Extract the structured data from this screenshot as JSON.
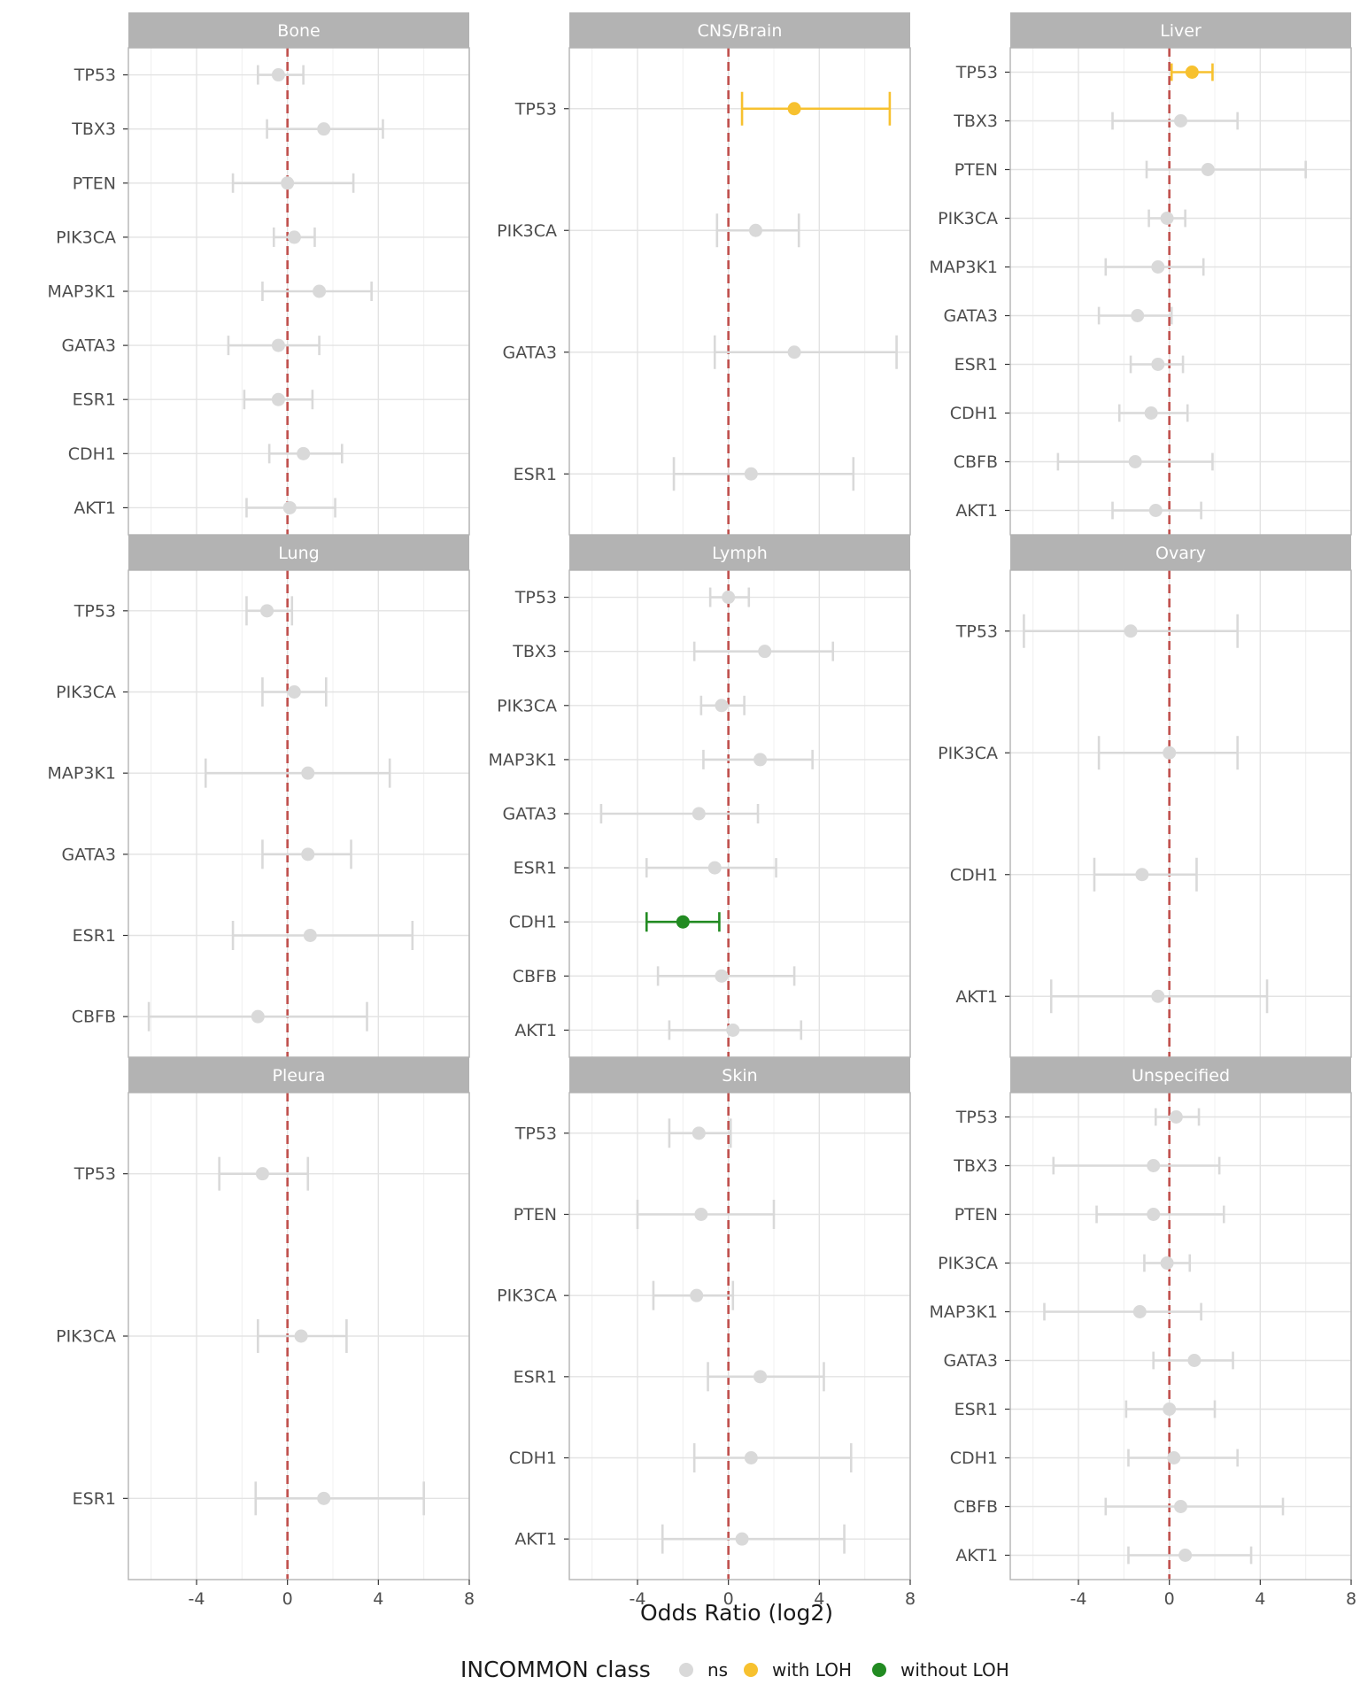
{
  "chart_data": {
    "type": "scatter",
    "subtype": "forest-plot (point + error bar), faceted",
    "xlabel": "Odds Ratio (log2)",
    "ylabel": "",
    "xlim": [
      -7,
      8
    ],
    "x_ticks": [
      -4,
      0,
      4,
      8
    ],
    "x_tick_labels": [
      "-4",
      "0",
      "4",
      "8"
    ],
    "reference_line": {
      "x": 0,
      "style": "dashed",
      "color": "#c0504d"
    },
    "grid": true,
    "legend": {
      "title": "INCOMMON class",
      "position": "bottom",
      "items": [
        {
          "label": "ns",
          "color": "#d9d9d9"
        },
        {
          "label": "with LOH",
          "color": "#f7c12f"
        },
        {
          "label": "without LOH",
          "color": "#228b22"
        }
      ]
    },
    "panels": [
      {
        "title": "Bone",
        "genes": [
          {
            "gene": "TP53",
            "est": -0.4,
            "lo": -1.3,
            "hi": 0.7,
            "cls": "ns"
          },
          {
            "gene": "TBX3",
            "est": 1.6,
            "lo": -0.9,
            "hi": 4.2,
            "cls": "ns"
          },
          {
            "gene": "PTEN",
            "est": 0.0,
            "lo": -2.4,
            "hi": 2.9,
            "cls": "ns"
          },
          {
            "gene": "PIK3CA",
            "est": 0.3,
            "lo": -0.6,
            "hi": 1.2,
            "cls": "ns"
          },
          {
            "gene": "MAP3K1",
            "est": 1.4,
            "lo": -1.1,
            "hi": 3.7,
            "cls": "ns"
          },
          {
            "gene": "GATA3",
            "est": -0.4,
            "lo": -2.6,
            "hi": 1.4,
            "cls": "ns"
          },
          {
            "gene": "ESR1",
            "est": -0.4,
            "lo": -1.9,
            "hi": 1.1,
            "cls": "ns"
          },
          {
            "gene": "CDH1",
            "est": 0.7,
            "lo": -0.8,
            "hi": 2.4,
            "cls": "ns"
          },
          {
            "gene": "AKT1",
            "est": 0.1,
            "lo": -1.8,
            "hi": 2.1,
            "cls": "ns"
          }
        ]
      },
      {
        "title": "CNS/Brain",
        "genes": [
          {
            "gene": "TP53",
            "est": 2.9,
            "lo": 0.6,
            "hi": 7.1,
            "cls": "with LOH"
          },
          {
            "gene": "PIK3CA",
            "est": 1.2,
            "lo": -0.5,
            "hi": 3.1,
            "cls": "ns"
          },
          {
            "gene": "GATA3",
            "est": 2.9,
            "lo": -0.6,
            "hi": 7.4,
            "cls": "ns"
          },
          {
            "gene": "ESR1",
            "est": 1.0,
            "lo": -2.4,
            "hi": 5.5,
            "cls": "ns"
          }
        ]
      },
      {
        "title": "Liver",
        "genes": [
          {
            "gene": "TP53",
            "est": 1.0,
            "lo": 0.1,
            "hi": 1.9,
            "cls": "with LOH"
          },
          {
            "gene": "TBX3",
            "est": 0.5,
            "lo": -2.5,
            "hi": 3.0,
            "cls": "ns"
          },
          {
            "gene": "PTEN",
            "est": 1.7,
            "lo": -1.0,
            "hi": 6.0,
            "cls": "ns"
          },
          {
            "gene": "PIK3CA",
            "est": -0.1,
            "lo": -0.9,
            "hi": 0.7,
            "cls": "ns"
          },
          {
            "gene": "MAP3K1",
            "est": -0.5,
            "lo": -2.8,
            "hi": 1.5,
            "cls": "ns"
          },
          {
            "gene": "GATA3",
            "est": -1.4,
            "lo": -3.1,
            "hi": 0.1,
            "cls": "ns"
          },
          {
            "gene": "ESR1",
            "est": -0.5,
            "lo": -1.7,
            "hi": 0.6,
            "cls": "ns"
          },
          {
            "gene": "CDH1",
            "est": -0.8,
            "lo": -2.2,
            "hi": 0.8,
            "cls": "ns"
          },
          {
            "gene": "CBFB",
            "est": -1.5,
            "lo": -4.9,
            "hi": 1.9,
            "cls": "ns"
          },
          {
            "gene": "AKT1",
            "est": -0.6,
            "lo": -2.5,
            "hi": 1.4,
            "cls": "ns"
          }
        ]
      },
      {
        "title": "Lung",
        "genes": [
          {
            "gene": "TP53",
            "est": -0.9,
            "lo": -1.8,
            "hi": 0.2,
            "cls": "ns"
          },
          {
            "gene": "PIK3CA",
            "est": 0.3,
            "lo": -1.1,
            "hi": 1.7,
            "cls": "ns"
          },
          {
            "gene": "MAP3K1",
            "est": 0.9,
            "lo": -3.6,
            "hi": 4.5,
            "cls": "ns"
          },
          {
            "gene": "GATA3",
            "est": 0.9,
            "lo": -1.1,
            "hi": 2.8,
            "cls": "ns"
          },
          {
            "gene": "ESR1",
            "est": 1.0,
            "lo": -2.4,
            "hi": 5.5,
            "cls": "ns"
          },
          {
            "gene": "CBFB",
            "est": -1.3,
            "lo": -6.1,
            "hi": 3.5,
            "cls": "ns"
          }
        ]
      },
      {
        "title": "Lymph",
        "genes": [
          {
            "gene": "TP53",
            "est": 0.0,
            "lo": -0.8,
            "hi": 0.9,
            "cls": "ns"
          },
          {
            "gene": "TBX3",
            "est": 1.6,
            "lo": -1.5,
            "hi": 4.6,
            "cls": "ns"
          },
          {
            "gene": "PIK3CA",
            "est": -0.3,
            "lo": -1.2,
            "hi": 0.7,
            "cls": "ns"
          },
          {
            "gene": "MAP3K1",
            "est": 1.4,
            "lo": -1.1,
            "hi": 3.7,
            "cls": "ns"
          },
          {
            "gene": "GATA3",
            "est": -1.3,
            "lo": -5.6,
            "hi": 1.3,
            "cls": "ns"
          },
          {
            "gene": "ESR1",
            "est": -0.6,
            "lo": -3.6,
            "hi": 2.1,
            "cls": "ns"
          },
          {
            "gene": "CDH1",
            "est": -2.0,
            "lo": -3.6,
            "hi": -0.4,
            "cls": "without LOH"
          },
          {
            "gene": "CBFB",
            "est": -0.3,
            "lo": -3.1,
            "hi": 2.9,
            "cls": "ns"
          },
          {
            "gene": "AKT1",
            "est": 0.2,
            "lo": -2.6,
            "hi": 3.2,
            "cls": "ns"
          }
        ]
      },
      {
        "title": "Ovary",
        "genes": [
          {
            "gene": "TP53",
            "est": -1.7,
            "lo": -6.4,
            "hi": 3.0,
            "cls": "ns"
          },
          {
            "gene": "PIK3CA",
            "est": 0.0,
            "lo": -3.1,
            "hi": 3.0,
            "cls": "ns"
          },
          {
            "gene": "CDH1",
            "est": -1.2,
            "lo": -3.3,
            "hi": 1.2,
            "cls": "ns"
          },
          {
            "gene": "AKT1",
            "est": -0.5,
            "lo": -5.2,
            "hi": 4.3,
            "cls": "ns"
          }
        ]
      },
      {
        "title": "Pleura",
        "genes": [
          {
            "gene": "TP53",
            "est": -1.1,
            "lo": -3.0,
            "hi": 0.9,
            "cls": "ns"
          },
          {
            "gene": "PIK3CA",
            "est": 0.6,
            "lo": -1.3,
            "hi": 2.6,
            "cls": "ns"
          },
          {
            "gene": "ESR1",
            "est": 1.6,
            "lo": -1.4,
            "hi": 6.0,
            "cls": "ns"
          }
        ]
      },
      {
        "title": "Skin",
        "genes": [
          {
            "gene": "TP53",
            "est": -1.3,
            "lo": -2.6,
            "hi": 0.1,
            "cls": "ns"
          },
          {
            "gene": "PTEN",
            "est": -1.2,
            "lo": -4.0,
            "hi": 2.0,
            "cls": "ns"
          },
          {
            "gene": "PIK3CA",
            "est": -1.4,
            "lo": -3.3,
            "hi": 0.2,
            "cls": "ns"
          },
          {
            "gene": "ESR1",
            "est": 1.4,
            "lo": -0.9,
            "hi": 4.2,
            "cls": "ns"
          },
          {
            "gene": "CDH1",
            "est": 1.0,
            "lo": -1.5,
            "hi": 5.4,
            "cls": "ns"
          },
          {
            "gene": "AKT1",
            "est": 0.6,
            "lo": -2.9,
            "hi": 5.1,
            "cls": "ns"
          }
        ]
      },
      {
        "title": "Unspecified",
        "genes": [
          {
            "gene": "TP53",
            "est": 0.3,
            "lo": -0.6,
            "hi": 1.3,
            "cls": "ns"
          },
          {
            "gene": "TBX3",
            "est": -0.7,
            "lo": -5.1,
            "hi": 2.2,
            "cls": "ns"
          },
          {
            "gene": "PTEN",
            "est": -0.7,
            "lo": -3.2,
            "hi": 2.4,
            "cls": "ns"
          },
          {
            "gene": "PIK3CA",
            "est": -0.1,
            "lo": -1.1,
            "hi": 0.9,
            "cls": "ns"
          },
          {
            "gene": "MAP3K1",
            "est": -1.3,
            "lo": -5.5,
            "hi": 1.4,
            "cls": "ns"
          },
          {
            "gene": "GATA3",
            "est": 1.1,
            "lo": -0.7,
            "hi": 2.8,
            "cls": "ns"
          },
          {
            "gene": "ESR1",
            "est": 0.0,
            "lo": -1.9,
            "hi": 2.0,
            "cls": "ns"
          },
          {
            "gene": "CDH1",
            "est": 0.2,
            "lo": -1.8,
            "hi": 3.0,
            "cls": "ns"
          },
          {
            "gene": "CBFB",
            "est": 0.5,
            "lo": -2.8,
            "hi": 5.0,
            "cls": "ns"
          },
          {
            "gene": "AKT1",
            "est": 0.7,
            "lo": -1.8,
            "hi": 3.6,
            "cls": "ns"
          }
        ]
      }
    ]
  }
}
